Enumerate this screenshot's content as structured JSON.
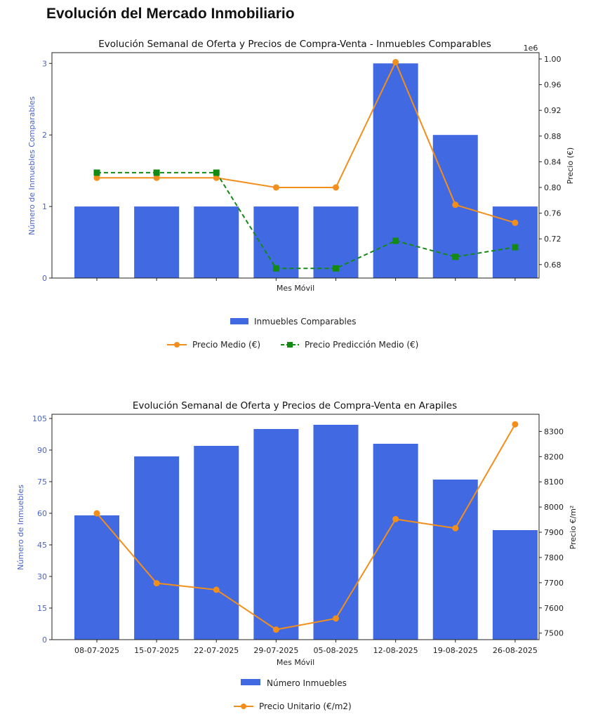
{
  "page": {
    "title": "Evolución del Mercado Inmobiliario"
  },
  "chart_data": [
    {
      "type": "bar",
      "title": "Evolución Semanal de Oferta y Precios de Compra-Venta - Inmuebles Comparables",
      "xlabel": "Mes Móvil",
      "ylabel": "Número de Inmuebles Comparables",
      "y2label": "Precio (€)",
      "y2_offset_label": "1e6",
      "categories": [
        "",
        "",
        "",
        "",
        "",
        "",
        "",
        ""
      ],
      "ylim": [
        0,
        3.15
      ],
      "yticks": [
        0,
        1,
        2,
        3
      ],
      "y2lim": [
        0.659,
        1.0098
      ],
      "y2ticks": [
        0.68,
        0.72,
        0.76,
        0.8,
        0.84,
        0.88,
        0.92,
        0.96,
        1.0
      ],
      "y2tick_labels": [
        "0.68",
        "0.72",
        "0.76",
        "0.80",
        "0.84",
        "0.88",
        "0.92",
        "0.96",
        "1.00"
      ],
      "grid": false,
      "series": [
        {
          "name": "Inmuebles Comparables",
          "type": "bar",
          "axis": "left",
          "color": "#4169e1",
          "values": [
            1,
            1,
            1,
            1,
            1,
            3,
            2,
            1
          ]
        },
        {
          "name": "Precio Medio (€)",
          "type": "line",
          "axis": "right",
          "marker": "circle",
          "linestyle": "solid",
          "color": "#f28e1c",
          "values": [
            0.815,
            0.815,
            0.815,
            0.8,
            0.8,
            0.995,
            0.773,
            0.745
          ]
        },
        {
          "name": "Precio Predicción Medio (€)",
          "type": "line",
          "axis": "right",
          "marker": "square",
          "linestyle": "dashed",
          "color": "#138a13",
          "values": [
            0.823,
            0.823,
            0.823,
            0.674,
            0.674,
            0.717,
            0.692,
            0.707
          ]
        }
      ],
      "legend": {
        "placement": "bottom",
        "rows": [
          [
            "Inmuebles Comparables"
          ],
          [
            "Precio Medio (€)",
            "Precio Predicción Medio (€)"
          ]
        ]
      }
    },
    {
      "type": "bar",
      "title": "Evolución Semanal de Oferta y Precios de Compra-Venta en Arapiles",
      "xlabel": "Mes Móvil",
      "ylabel": "Número de Inmuebles",
      "y2label": "Precio €/m²",
      "categories": [
        "08-07-2025",
        "15-07-2025",
        "22-07-2025",
        "29-07-2025",
        "05-08-2025",
        "12-08-2025",
        "19-08-2025",
        "26-08-2025"
      ],
      "ylim": [
        0,
        107
      ],
      "yticks": [
        0,
        15,
        30,
        45,
        60,
        75,
        90,
        105
      ],
      "y2lim": [
        7474,
        8368
      ],
      "y2ticks": [
        7500,
        7600,
        7700,
        7800,
        7900,
        8000,
        8100,
        8200,
        8300
      ],
      "grid": false,
      "series": [
        {
          "name": "Número Inmuebles",
          "type": "bar",
          "axis": "left",
          "color": "#4169e1",
          "values": [
            59,
            87,
            92,
            100,
            102,
            93,
            76,
            52
          ]
        },
        {
          "name": "Precio Unitario (€/m2)",
          "type": "line",
          "axis": "right",
          "marker": "circle",
          "linestyle": "solid",
          "color": "#f28e1c",
          "values": [
            7975,
            7698,
            7672,
            7514,
            7558,
            7952,
            7916,
            8328
          ]
        }
      ],
      "legend": {
        "placement": "bottom",
        "rows": [
          [
            "Número Inmuebles"
          ],
          [
            "Precio Unitario (€/m2)"
          ]
        ]
      }
    }
  ]
}
